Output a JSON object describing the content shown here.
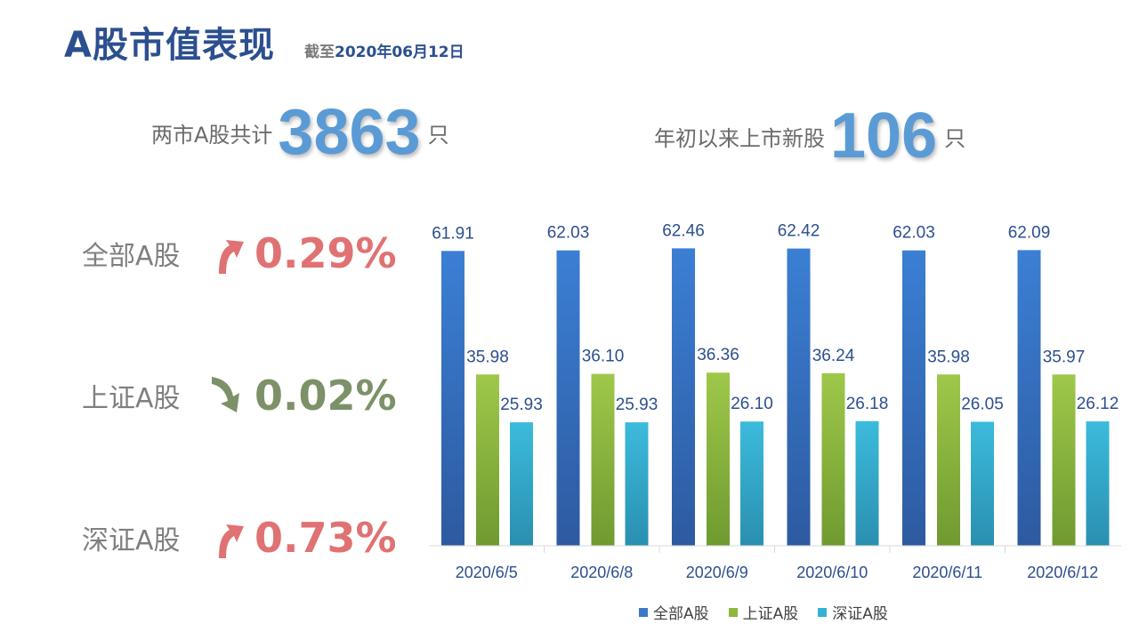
{
  "header": {
    "title": "A股市值表现",
    "asof_prefix": "截至",
    "asof_date": "2020年06月12日"
  },
  "kpis": [
    {
      "label": "两市A股共计",
      "value": "3863",
      "unit": "只"
    },
    {
      "label": "年初以来上市新股",
      "value": "106",
      "unit": "只"
    }
  ],
  "indices": [
    {
      "name": "全部A股",
      "direction": "up",
      "change": "0.29%",
      "color": "#e07273"
    },
    {
      "name": "上证A股",
      "direction": "down",
      "change": "0.02%",
      "color": "#7d9169"
    },
    {
      "name": "深证A股",
      "direction": "up",
      "change": "0.73%",
      "color": "#e07273"
    }
  ],
  "chart_data": {
    "type": "bar",
    "categories": [
      "2020/6/5",
      "2020/6/8",
      "2020/6/9",
      "2020/6/10",
      "2020/6/11",
      "2020/6/12"
    ],
    "series": [
      {
        "name": "全部A股",
        "values": [
          61.91,
          62.03,
          62.46,
          62.42,
          62.03,
          62.09
        ],
        "color": "#3a78c9"
      },
      {
        "name": "上证A股",
        "values": [
          35.98,
          36.1,
          36.36,
          36.24,
          35.98,
          35.97
        ],
        "color": "#8fb83f"
      },
      {
        "name": "深证A股",
        "values": [
          25.93,
          25.93,
          26.1,
          26.18,
          26.05,
          26.12
        ],
        "color": "#35b1d4"
      }
    ],
    "value_labels": [
      [
        "61.91",
        "62.03",
        "62.46",
        "62.42",
        "62.03",
        "62.09"
      ],
      [
        "35.98",
        "36.10",
        "36.36",
        "36.24",
        "35.98",
        "35.97"
      ],
      [
        "25.93",
        "25.93",
        "26.10",
        "26.18",
        "26.05",
        "26.12"
      ]
    ],
    "ylim": [
      0,
      70
    ],
    "grid": false,
    "legend_position": "bottom"
  }
}
